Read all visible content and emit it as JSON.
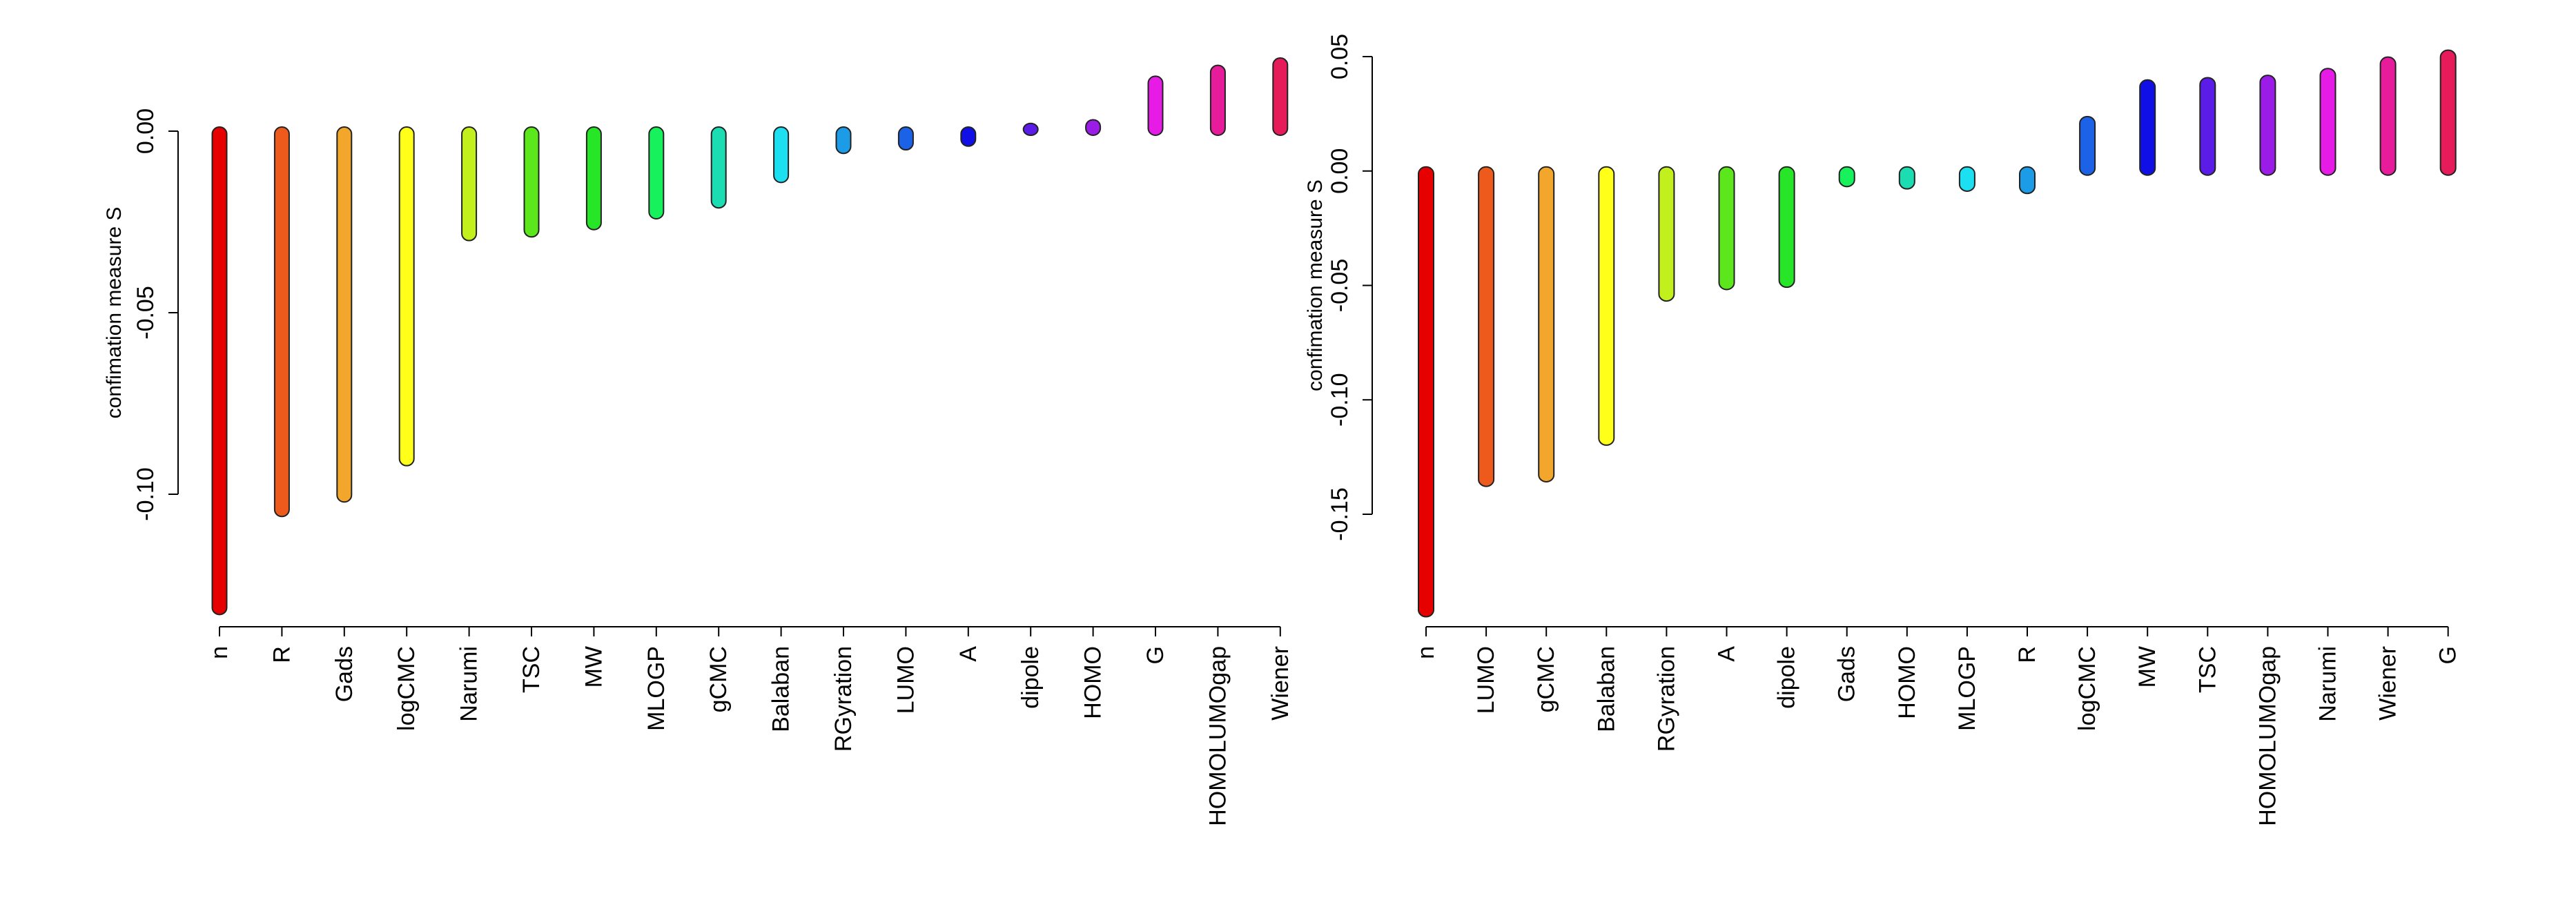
{
  "chart_data": [
    {
      "type": "bar",
      "style": "lollipop-range",
      "ylabel": "confimation measure S",
      "ylim": [
        -0.135,
        0.02
      ],
      "yticks": [
        0.0,
        -0.05,
        -0.1
      ],
      "ytick_labels": [
        "0.00",
        "-0.05",
        "-0.10"
      ],
      "categories": [
        "n",
        "R",
        "Gads",
        "logCMC",
        "Narumi",
        "TSC",
        "MW",
        "MLOGP",
        "gCMC",
        "Balaban",
        "RGyration",
        "LUMO",
        "A",
        "dipole",
        "HOMO",
        "G",
        "HOMOLUMOgap",
        "Wiener"
      ],
      "values": [
        -0.132,
        -0.105,
        -0.101,
        -0.091,
        -0.029,
        -0.028,
        -0.026,
        -0.023,
        -0.02,
        -0.013,
        -0.005,
        -0.004,
        -0.003,
        0.001,
        0.002,
        0.014,
        0.017,
        0.019
      ],
      "colors": [
        "#E60000",
        "#EE5A1C",
        "#F2A62C",
        "#FFFF1A",
        "#C2F01C",
        "#5CE61C",
        "#27E627",
        "#17F25C",
        "#1CDCB2",
        "#1CE0F2",
        "#1C9CE6",
        "#1C62E6",
        "#1010E6",
        "#5A1CE6",
        "#9A1CE6",
        "#E61CE6",
        "#E61C9A",
        "#E61C5A"
      ]
    },
    {
      "type": "bar",
      "style": "lollipop-range",
      "ylabel": "confimation measure S",
      "ylim": [
        -0.195,
        0.053
      ],
      "yticks": [
        0.05,
        0.0,
        -0.05,
        -0.1,
        -0.15
      ],
      "ytick_labels": [
        "0.05",
        "0.00",
        "-0.05",
        "-0.10",
        "-0.15"
      ],
      "categories": [
        "n",
        "LUMO",
        "gCMC",
        "Balaban",
        "RGyration",
        "A",
        "dipole",
        "Gads",
        "HOMO",
        "MLOGP",
        "R",
        "logCMC",
        "MW",
        "TSC",
        "HOMOLUMOgap",
        "Narumi",
        "Wiener",
        "G"
      ],
      "values": [
        -0.193,
        -0.136,
        -0.134,
        -0.118,
        -0.055,
        -0.05,
        -0.049,
        -0.005,
        -0.006,
        -0.007,
        -0.008,
        0.022,
        0.038,
        0.039,
        0.04,
        0.043,
        0.048,
        0.051
      ],
      "colors": [
        "#E60000",
        "#EE5A1C",
        "#F2A62C",
        "#FFFF1A",
        "#C2F01C",
        "#5CE61C",
        "#27E627",
        "#17F25C",
        "#1CDCB2",
        "#1CE0F2",
        "#1C9CE6",
        "#1C62E6",
        "#1010E6",
        "#5A1CE6",
        "#9A1CE6",
        "#E61CE6",
        "#E61C9A",
        "#E61C5A"
      ]
    }
  ]
}
